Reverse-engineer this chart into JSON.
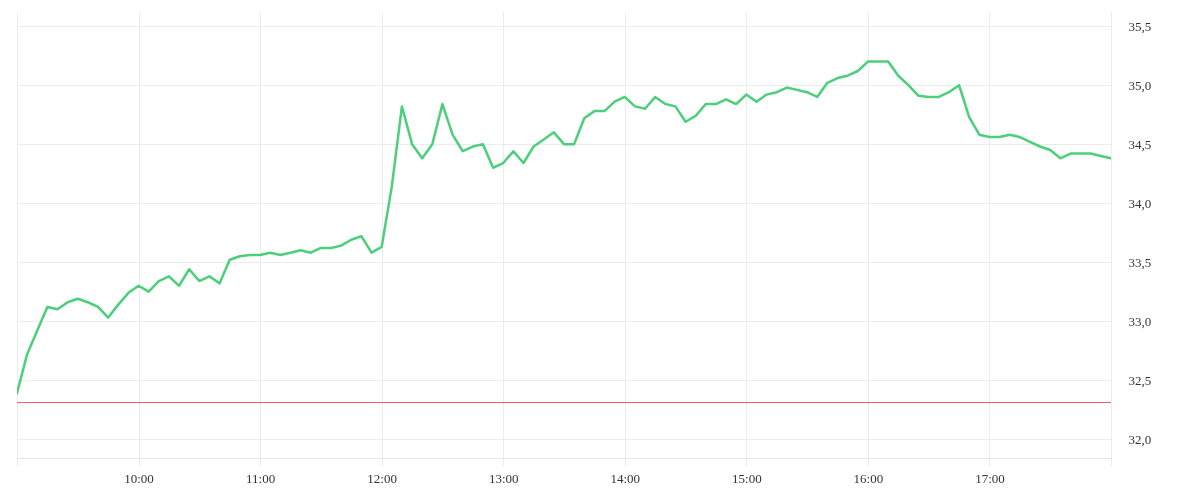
{
  "chart_data": {
    "type": "line",
    "x": [
      9,
      9.0833,
      9.1667,
      9.25,
      9.3333,
      9.4167,
      9.5,
      9.5833,
      9.6667,
      9.75,
      9.8333,
      9.9167,
      10,
      10.0833,
      10.1667,
      10.25,
      10.3333,
      10.4167,
      10.5,
      10.5833,
      10.6667,
      10.75,
      10.8333,
      10.9167,
      11,
      11.0833,
      11.1667,
      11.25,
      11.3333,
      11.4167,
      11.5,
      11.5833,
      11.6667,
      11.75,
      11.8333,
      11.9167,
      12,
      12.0833,
      12.1667,
      12.25,
      12.3333,
      12.4167,
      12.5,
      12.5833,
      12.6667,
      12.75,
      12.8333,
      12.9167,
      13,
      13.0833,
      13.1667,
      13.25,
      13.3333,
      13.4167,
      13.5,
      13.5833,
      13.6667,
      13.75,
      13.8333,
      13.9167,
      14,
      14.0833,
      14.1667,
      14.25,
      14.3333,
      14.4167,
      14.5,
      14.5833,
      14.6667,
      14.75,
      14.8333,
      14.9167,
      15,
      15.0833,
      15.1667,
      15.25,
      15.3333,
      15.4167,
      15.5,
      15.5833,
      15.6667,
      15.75,
      15.8333,
      15.9167,
      16,
      16.0833,
      16.1667,
      16.25,
      16.3333,
      16.4167,
      16.5,
      16.5833,
      16.6667,
      16.75,
      16.8333,
      16.9167,
      17,
      17.0833,
      17.1667,
      17.25,
      17.3333,
      17.4167,
      17.5,
      17.5833,
      17.6667,
      17.75,
      17.8333,
      17.9167,
      18
    ],
    "series": [
      {
        "color": "#4ccf7b",
        "values": [
          32.39,
          32.72,
          32.92,
          33.12,
          33.1,
          33.16,
          33.19,
          33.16,
          33.12,
          33.03,
          33.14,
          33.24,
          33.3,
          33.25,
          33.34,
          33.38,
          33.3,
          33.44,
          33.34,
          33.38,
          33.32,
          33.52,
          33.55,
          33.56,
          33.56,
          33.58,
          33.56,
          33.58,
          33.6,
          33.58,
          33.62,
          33.62,
          33.64,
          33.69,
          33.72,
          33.58,
          33.63,
          34.14,
          34.82,
          34.5,
          34.38,
          34.5,
          34.84,
          34.58,
          34.44,
          34.48,
          34.5,
          34.3,
          34.34,
          34.44,
          34.34,
          34.48,
          34.54,
          34.6,
          34.5,
          34.5,
          34.72,
          34.78,
          34.78,
          34.86,
          34.9,
          34.82,
          34.8,
          34.9,
          34.84,
          34.82,
          34.69,
          34.74,
          34.84,
          34.84,
          34.88,
          34.84,
          34.92,
          34.86,
          34.92,
          34.94,
          34.98,
          34.96,
          34.94,
          34.9,
          35.02,
          35.06,
          35.08,
          35.12,
          35.2,
          35.2,
          35.2,
          35.08,
          35.0,
          34.91,
          34.9,
          34.9,
          34.94,
          35.0,
          34.73,
          34.58,
          34.56,
          34.56,
          34.58,
          34.56,
          34.52,
          34.48,
          34.45,
          34.38,
          34.42,
          34.42,
          34.42,
          34.4,
          34.38
        ]
      }
    ],
    "xlim": [
      9,
      18
    ],
    "xticks": [
      {
        "value": 9,
        "label": null
      },
      {
        "value": 10,
        "label": "10:00"
      },
      {
        "value": 11,
        "label": "11:00"
      },
      {
        "value": 12,
        "label": "12:00"
      },
      {
        "value": 13,
        "label": "13:00"
      },
      {
        "value": 14,
        "label": "14:00"
      },
      {
        "value": 15,
        "label": "15:00"
      },
      {
        "value": 16,
        "label": "16:00"
      },
      {
        "value": 17,
        "label": "17:00"
      },
      {
        "value": 18,
        "label": null
      }
    ],
    "ylim": [
      31.84,
      35.62
    ],
    "yticks": [
      {
        "value": 32.0,
        "label": "32,0"
      },
      {
        "value": 32.5,
        "label": "32,5"
      },
      {
        "value": 33.0,
        "label": "33,0"
      },
      {
        "value": 33.5,
        "label": "33,5"
      },
      {
        "value": 34.0,
        "label": "34,0"
      },
      {
        "value": 34.5,
        "label": "34,5"
      },
      {
        "value": 35.0,
        "label": "35,0"
      },
      {
        "value": 35.5,
        "label": "35,5"
      }
    ],
    "grid": true,
    "ref_lines": [
      {
        "axis": "y",
        "value": 32.31,
        "color": "#f25c5c"
      }
    ]
  }
}
